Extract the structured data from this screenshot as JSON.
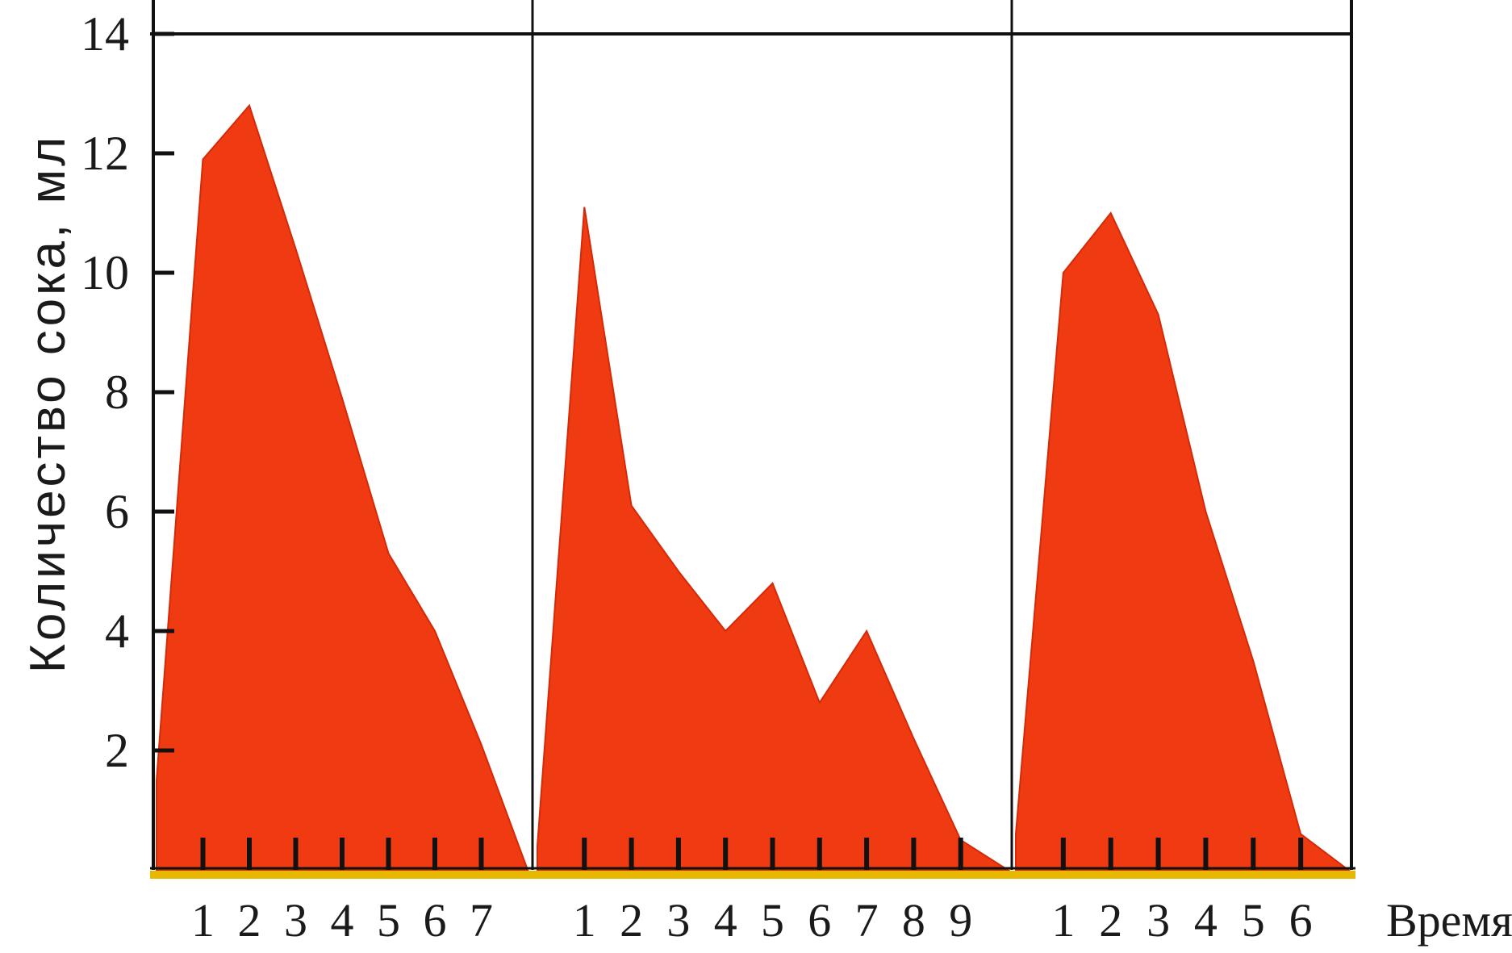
{
  "chart_data": {
    "type": "area",
    "title": "",
    "xlabel": "Время",
    "ylabel": "Количество сока, мл",
    "ylim": [
      0,
      14
    ],
    "yticks": [
      2,
      4,
      6,
      8,
      10,
      12,
      14
    ],
    "grid": false,
    "fill_color": "#f03a12",
    "axis_color": "#e8b800",
    "panels": [
      {
        "x_ticks": [
          1,
          2,
          3,
          4,
          5,
          6,
          7
        ],
        "x": [
          0,
          1,
          2,
          3,
          4,
          5,
          6,
          7,
          8
        ],
        "values": [
          1.5,
          11.9,
          12.8,
          10.4,
          7.9,
          5.3,
          4.0,
          2.1,
          0.0
        ]
      },
      {
        "x_ticks": [
          1,
          2,
          3,
          4,
          5,
          6,
          7,
          8,
          9
        ],
        "x": [
          0,
          1,
          2,
          3,
          4,
          5,
          6,
          7,
          8,
          9,
          10
        ],
        "values": [
          0.4,
          11.1,
          6.1,
          5.0,
          4.0,
          4.8,
          2.8,
          4.0,
          2.2,
          0.5,
          0.0
        ]
      },
      {
        "x_ticks": [
          1,
          2,
          3,
          4,
          5,
          6
        ],
        "x": [
          0,
          1,
          2,
          3,
          4,
          5,
          6,
          7
        ],
        "values": [
          0.6,
          10.0,
          11.0,
          9.3,
          6.0,
          3.5,
          0.6,
          0.0
        ]
      }
    ]
  }
}
